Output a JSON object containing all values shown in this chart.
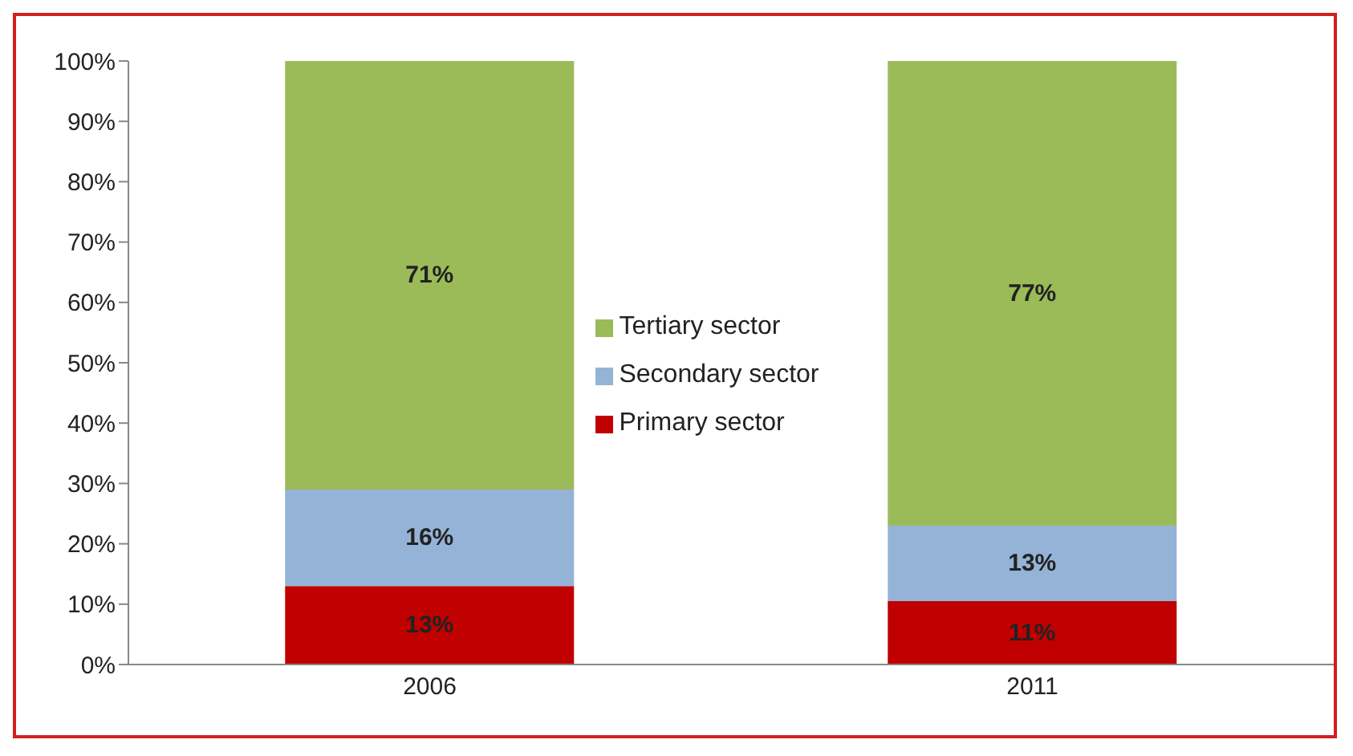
{
  "chart_data": {
    "type": "bar",
    "stacked": true,
    "categories": [
      "2006",
      "2011"
    ],
    "series": [
      {
        "name": "Primary sector",
        "color": "#c00000",
        "values": [
          13,
          10.5
        ],
        "value_labels": [
          "13%",
          "11%"
        ]
      },
      {
        "name": "Secondary sector",
        "color": "#95b3d7",
        "values": [
          16,
          12.5
        ],
        "value_labels": [
          "16%",
          "13%"
        ]
      },
      {
        "name": "Tertiary sector",
        "color": "#9bbb59",
        "values": [
          71,
          77
        ],
        "value_labels": [
          "71%",
          "77%"
        ]
      }
    ],
    "ylim": [
      0,
      100
    ],
    "yticks": [
      {
        "value": 0,
        "label": "0%"
      },
      {
        "value": 10,
        "label": "10%"
      },
      {
        "value": 20,
        "label": "20%"
      },
      {
        "value": 30,
        "label": "30%"
      },
      {
        "value": 40,
        "label": "40%"
      },
      {
        "value": 50,
        "label": "50%"
      },
      {
        "value": 60,
        "label": "60%"
      },
      {
        "value": 70,
        "label": "70%"
      },
      {
        "value": 80,
        "label": "80%"
      },
      {
        "value": 90,
        "label": "90%"
      },
      {
        "value": 100,
        "label": "100%"
      }
    ],
    "grid": false,
    "legend": "center"
  }
}
